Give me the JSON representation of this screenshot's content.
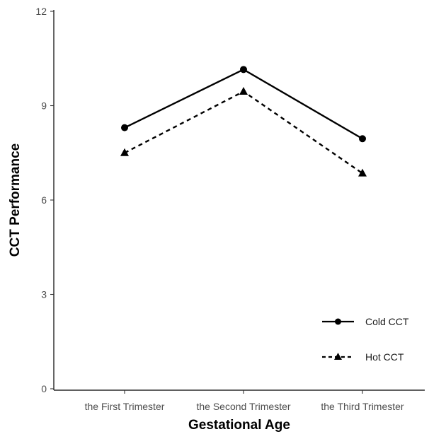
{
  "chart_data": {
    "type": "line",
    "xlabel": "Gestational Age",
    "ylabel": "CCT Performance",
    "categories": [
      "the First Trimester",
      "the Second Trimester",
      "the Third Trimester"
    ],
    "ylim": [
      0,
      12
    ],
    "yticks": [
      0,
      3,
      6,
      9,
      12
    ],
    "grid": false,
    "legend_position": "bottom-right",
    "series": [
      {
        "name": "Cold CCT",
        "values": [
          8.3,
          10.15,
          7.95
        ],
        "line": "solid",
        "marker": "circle",
        "color": "#000000"
      },
      {
        "name": "Hot CCT",
        "values": [
          7.5,
          9.45,
          6.85
        ],
        "line": "dashed",
        "marker": "triangle",
        "color": "#000000"
      }
    ]
  }
}
